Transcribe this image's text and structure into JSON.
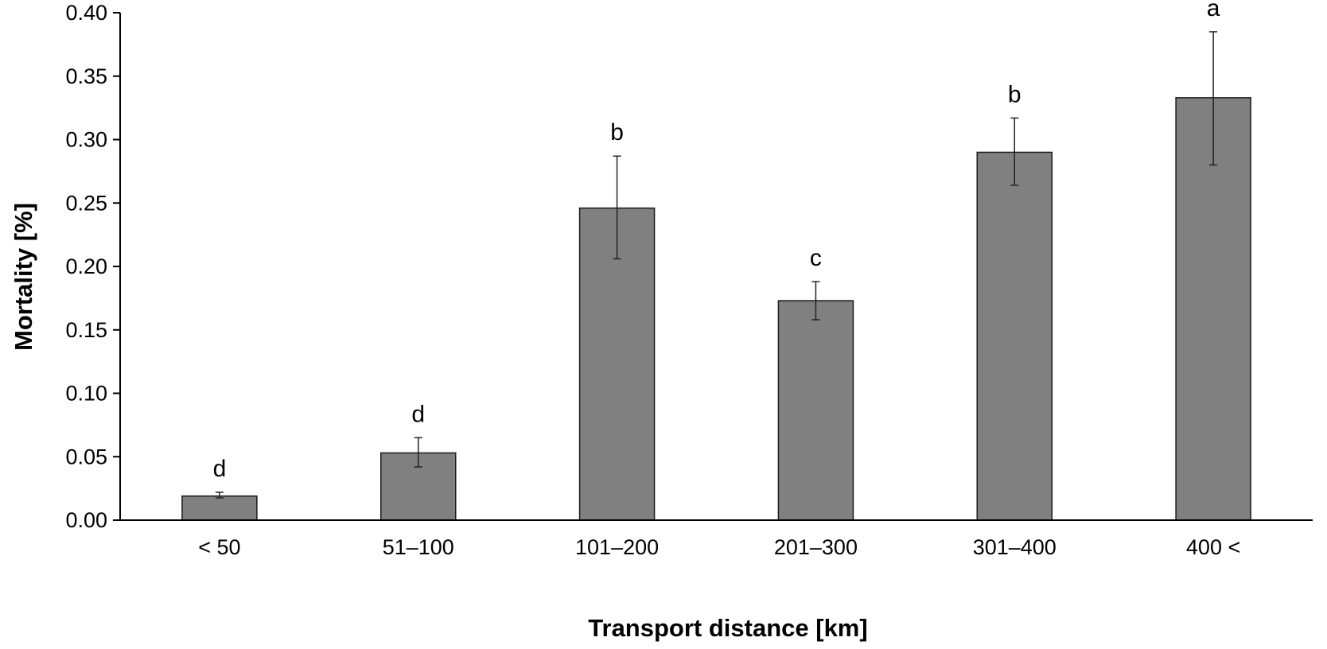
{
  "chart_data": {
    "type": "bar",
    "categories": [
      "< 50",
      "51–100",
      "101–200",
      "201–300",
      "301–400",
      "400 <"
    ],
    "values": [
      0.019,
      0.053,
      0.246,
      0.173,
      0.29,
      0.333
    ],
    "error_low": [
      0.0175,
      0.042,
      0.206,
      0.158,
      0.264,
      0.28
    ],
    "error_high": [
      0.022,
      0.065,
      0.287,
      0.188,
      0.317,
      0.385
    ],
    "significance_letters": [
      "d",
      "d",
      "b",
      "c",
      "b",
      "a"
    ],
    "xlabel": "Transport distance [km]",
    "ylabel": "Mortality [%]",
    "ylim": [
      0,
      0.4
    ],
    "yticks": [
      "0.00",
      "0.05",
      "0.10",
      "0.15",
      "0.20",
      "0.25",
      "0.30",
      "0.35",
      "0.40"
    ],
    "grid": false,
    "legend": "none",
    "colors": {
      "bar_fill": "#808080",
      "bar_stroke": "#1a1a1a",
      "axis": "#000000",
      "error_bar": "#222222"
    }
  }
}
